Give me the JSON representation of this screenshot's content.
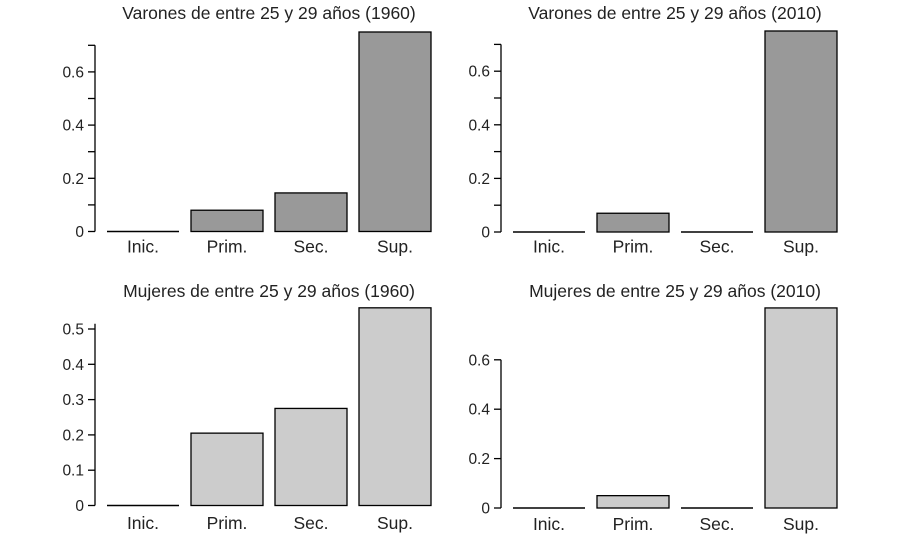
{
  "figure": {
    "background": "#ffffff",
    "text_color": "#222222",
    "axis_color": "#000000"
  },
  "chart_data": [
    {
      "type": "bar",
      "title": "Varones de entre 25 y 29 años (1960)",
      "categories": [
        "Inic.",
        "Prim.",
        "Sec.",
        "Sup."
      ],
      "values": [
        0,
        0.08,
        0.145,
        0.75
      ],
      "bar_color": "#999999",
      "bar_border_color": "#000000",
      "ylim": [
        0,
        0.7
      ],
      "grid": false,
      "legend": false,
      "yticks": [
        {
          "value": 0.0,
          "label": "0"
        },
        {
          "value": 0.1,
          "label": ""
        },
        {
          "value": 0.2,
          "label": "0.2"
        },
        {
          "value": 0.3,
          "label": ""
        },
        {
          "value": 0.4,
          "label": "0.4"
        },
        {
          "value": 0.5,
          "label": ""
        },
        {
          "value": 0.6,
          "label": "0.6"
        },
        {
          "value": 0.7,
          "label": ""
        }
      ]
    },
    {
      "type": "bar",
      "title": "Varones de entre 25 y 29 años (2010)",
      "categories": [
        "Inic.",
        "Prim.",
        "Sec.",
        "Sup."
      ],
      "values": [
        0,
        0.07,
        0,
        0.75
      ],
      "bar_color": "#999999",
      "bar_border_color": "#000000",
      "ylim": [
        0,
        0.7
      ],
      "grid": false,
      "legend": false,
      "yticks": [
        {
          "value": 0.0,
          "label": "0"
        },
        {
          "value": 0.1,
          "label": ""
        },
        {
          "value": 0.2,
          "label": "0.2"
        },
        {
          "value": 0.3,
          "label": ""
        },
        {
          "value": 0.4,
          "label": "0.4"
        },
        {
          "value": 0.5,
          "label": ""
        },
        {
          "value": 0.6,
          "label": "0.6"
        },
        {
          "value": 0.7,
          "label": ""
        }
      ]
    },
    {
      "type": "bar",
      "title": "Mujeres de entre 25 y 29 años (1960)",
      "categories": [
        "Inic.",
        "Prim.",
        "Sec.",
        "Sup."
      ],
      "values": [
        0,
        0.205,
        0.275,
        0.56
      ],
      "bar_color": "#cccccc",
      "bar_border_color": "#000000",
      "ylim": [
        0,
        0.515
      ],
      "grid": false,
      "legend": false,
      "yticks": [
        {
          "value": 0.0,
          "label": "0"
        },
        {
          "value": 0.1,
          "label": "0.1"
        },
        {
          "value": 0.2,
          "label": "0.2"
        },
        {
          "value": 0.3,
          "label": "0.3"
        },
        {
          "value": 0.4,
          "label": "0.4"
        },
        {
          "value": 0.5,
          "label": "0.5"
        }
      ]
    },
    {
      "type": "bar",
      "title": "Mujeres de entre 25 y 29 años (2010)",
      "categories": [
        "Inic.",
        "Prim.",
        "Sec.",
        "Sup."
      ],
      "values": [
        0,
        0.05,
        0,
        0.81
      ],
      "bar_color": "#cccccc",
      "bar_border_color": "#000000",
      "ylim": [
        0,
        0.6
      ],
      "grid": false,
      "legend": false,
      "yticks": [
        {
          "value": 0.0,
          "label": "0"
        },
        {
          "value": 0.2,
          "label": "0.2"
        },
        {
          "value": 0.4,
          "label": "0.4"
        },
        {
          "value": 0.6,
          "label": "0.6"
        }
      ]
    }
  ]
}
